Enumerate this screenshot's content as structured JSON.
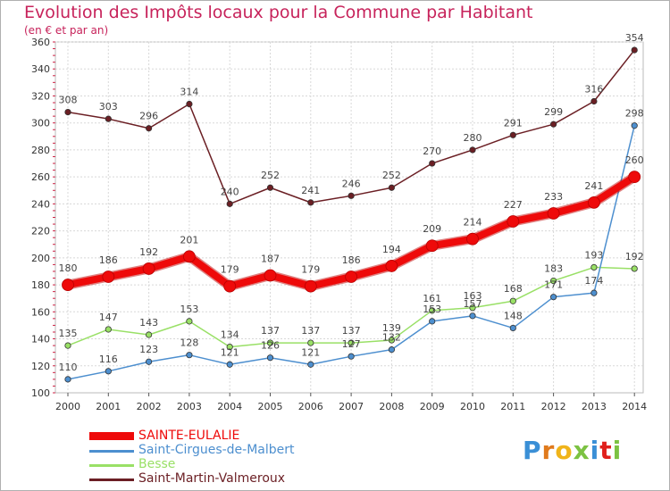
{
  "chart_data": {
    "type": "line",
    "title": "Evolution des Impôts locaux pour la Commune par Habitant",
    "subtitle": "(en € et par an)",
    "xlabel": "",
    "ylabel": "",
    "ylim": [
      100,
      360
    ],
    "yticks": [
      100,
      120,
      140,
      160,
      180,
      200,
      220,
      240,
      260,
      280,
      300,
      320,
      340,
      360
    ],
    "x": [
      2000,
      2001,
      2002,
      2003,
      2004,
      2005,
      2006,
      2007,
      2008,
      2009,
      2010,
      2011,
      2012,
      2013,
      2014
    ],
    "grid": true,
    "series": [
      {
        "name": "Saint-Martin-Valmeroux",
        "color": "#6b1f24",
        "values": [
          308,
          303,
          296,
          314,
          240,
          252,
          241,
          246,
          252,
          270,
          280,
          291,
          299,
          316,
          354
        ]
      },
      {
        "name": "Besse",
        "color": "#99e066",
        "values": [
          135,
          147,
          143,
          153,
          134,
          137,
          137,
          137,
          139,
          161,
          163,
          168,
          183,
          193,
          192
        ]
      },
      {
        "name": "Saint-Cirgues-de-Malbert",
        "color": "#4d8fcf",
        "values": [
          110,
          116,
          123,
          128,
          121,
          126,
          121,
          127,
          132,
          153,
          157,
          148,
          171,
          174,
          298
        ]
      },
      {
        "name": "SAINTE-EULALIE",
        "color": "#ee0a0a",
        "values": [
          180,
          186,
          192,
          201,
          179,
          187,
          179,
          186,
          194,
          209,
          214,
          227,
          233,
          241,
          260
        ]
      }
    ]
  },
  "legend": {
    "items": [
      {
        "label": "SAINTE-EULALIE",
        "color": "#ee0a0a"
      },
      {
        "label": "Saint-Cirgues-de-Malbert",
        "color": "#4d8fcf"
      },
      {
        "label": "Besse",
        "color": "#99e066"
      },
      {
        "label": "Saint-Martin-Valmeroux",
        "color": "#6b1f24"
      }
    ]
  },
  "logo": {
    "text": "Proxiti",
    "colors": [
      "#3a8fd6",
      "#e07a1c",
      "#f0b41a",
      "#7cc242",
      "#3a8fd6",
      "#e0201c",
      "#7cc242"
    ]
  }
}
